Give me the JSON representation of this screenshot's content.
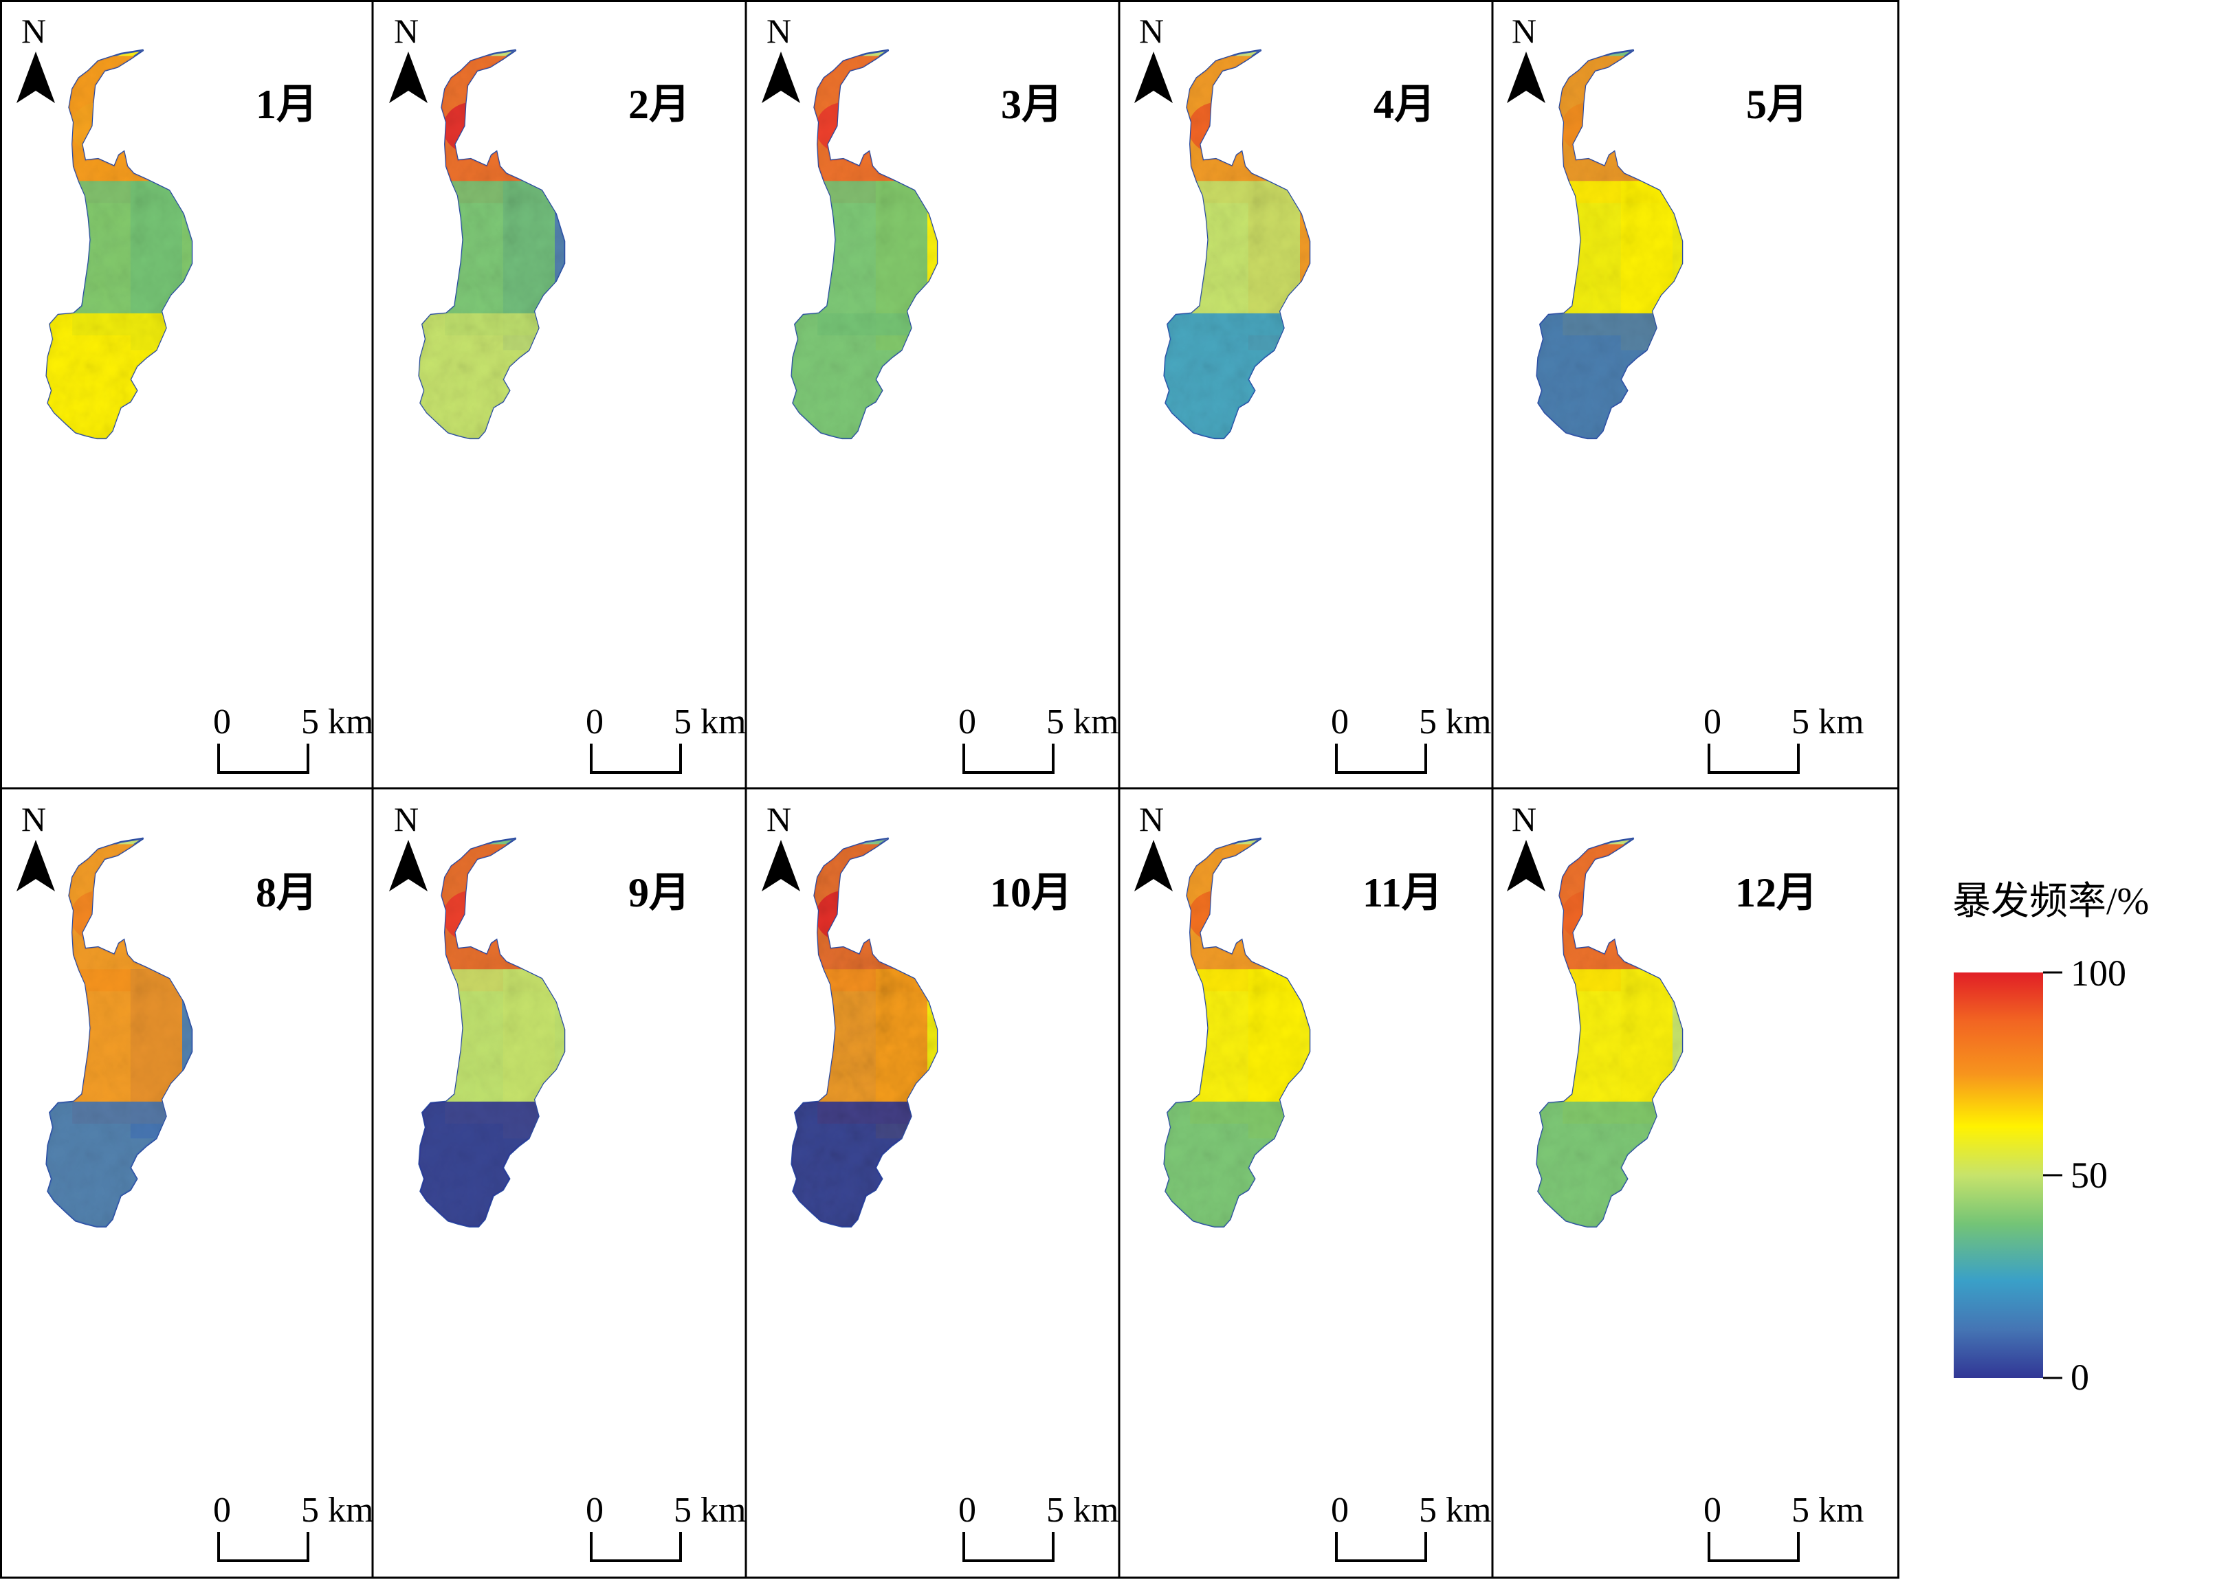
{
  "figure": {
    "panels": [
      {
        "id": "jan",
        "label": "1月",
        "scale_start": "0",
        "scale_end": "5 km",
        "pattern": {
          "base": 0.58,
          "north": 0.72,
          "middle": 0.42,
          "south": 0.6,
          "east": 0.42,
          "highlight": "#f5a31e",
          "noise": 0.28
        }
      },
      {
        "id": "feb",
        "label": "2月",
        "scale_start": "0",
        "scale_end": "5 km",
        "pattern": {
          "base": 0.48,
          "north": 0.92,
          "middle": 0.38,
          "south": 0.47,
          "east": 0.18,
          "highlight": "#e22d2d",
          "noise": 0.32
        }
      },
      {
        "id": "mar",
        "label": "3月",
        "scale_start": "0",
        "scale_end": "5 km",
        "pattern": {
          "base": 0.45,
          "north": 0.88,
          "middle": 0.42,
          "south": 0.38,
          "east": 0.58,
          "highlight": "#ec3b2b",
          "noise": 0.25
        }
      },
      {
        "id": "apr",
        "label": "4月",
        "scale_start": "0",
        "scale_end": "5 km",
        "pattern": {
          "base": 0.46,
          "north": 0.78,
          "middle": 0.55,
          "south": 0.3,
          "east": 0.72,
          "highlight": "#f06024",
          "noise": 0.3
        }
      },
      {
        "id": "may",
        "label": "5月",
        "scale_start": "0",
        "scale_end": "5 km",
        "pattern": {
          "base": 0.42,
          "north": 0.75,
          "middle": 0.58,
          "south": 0.18,
          "east": 0.58,
          "highlight": "#f08b1d",
          "noise": 0.25
        }
      },
      {
        "id": "aug",
        "label": "8月",
        "scale_start": "0",
        "scale_end": "5 km",
        "pattern": {
          "base": 0.45,
          "north": 0.78,
          "middle": 0.74,
          "south": 0.08,
          "east": 0.14,
          "highlight": "#f28421",
          "noise": 0.24
        }
      },
      {
        "id": "sep",
        "label": "9月",
        "scale_start": "0",
        "scale_end": "5 km",
        "pattern": {
          "base": 0.4,
          "north": 0.82,
          "middle": 0.55,
          "south": 0.05,
          "east": 0.52,
          "highlight": "#eb3b2b",
          "noise": 0.24
        }
      },
      {
        "id": "oct",
        "label": "10月",
        "scale_start": "0",
        "scale_end": "5 km",
        "pattern": {
          "base": 0.38,
          "north": 0.9,
          "middle": 0.8,
          "south": 0.06,
          "east": 0.6,
          "highlight": "#e32828",
          "noise": 0.45
        }
      },
      {
        "id": "nov",
        "label": "11月",
        "scale_start": "0",
        "scale_end": "5 km",
        "pattern": {
          "base": 0.52,
          "north": 0.7,
          "middle": 0.58,
          "south": 0.42,
          "east": 0.65,
          "highlight": "#f26d1e",
          "noise": 0.26
        }
      },
      {
        "id": "dec",
        "label": "12月",
        "scale_start": "0",
        "scale_end": "5 km",
        "pattern": {
          "base": 0.5,
          "north": 0.82,
          "middle": 0.65,
          "south": 0.35,
          "east": 0.48,
          "highlight": "#ef6424",
          "noise": 0.26
        }
      }
    ],
    "north_letter": "N",
    "legend": {
      "title": "暴发频率/%",
      "tick_max": "100",
      "tick_mid": "50",
      "tick_min": "0",
      "colors": [
        "#e11f26",
        "#f26522",
        "#f7941d",
        "#fff200",
        "#c7e36b",
        "#74c476",
        "#3aa0c8",
        "#4575b4",
        "#313695"
      ]
    }
  }
}
